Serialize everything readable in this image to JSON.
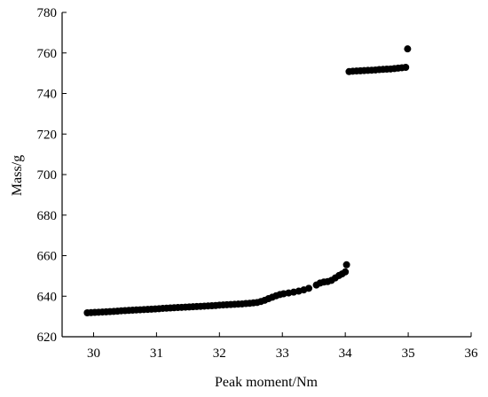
{
  "chart_data": {
    "type": "scatter",
    "xlabel": "Peak moment/Nm",
    "ylabel": "Mass/g",
    "xlim": [
      29.5,
      36
    ],
    "ylim": [
      620,
      780
    ],
    "xticks": [
      30,
      31,
      32,
      33,
      34,
      35,
      36
    ],
    "yticks": [
      620,
      640,
      660,
      680,
      700,
      720,
      740,
      760,
      780
    ],
    "grid": false,
    "legend": "none",
    "point_color": "#000000",
    "series": [
      {
        "points": [
          [
            29.9,
            631.8
          ],
          [
            29.96,
            631.9
          ],
          [
            30.02,
            632.0
          ],
          [
            30.08,
            632.1
          ],
          [
            30.14,
            632.2
          ],
          [
            30.2,
            632.3
          ],
          [
            30.26,
            632.4
          ],
          [
            30.32,
            632.5
          ],
          [
            30.38,
            632.6
          ],
          [
            30.44,
            632.8
          ],
          [
            30.5,
            632.9
          ],
          [
            30.56,
            633.0
          ],
          [
            30.62,
            633.1
          ],
          [
            30.68,
            633.2
          ],
          [
            30.74,
            633.3
          ],
          [
            30.8,
            633.4
          ],
          [
            30.86,
            633.5
          ],
          [
            30.92,
            633.6
          ],
          [
            30.98,
            633.7
          ],
          [
            31.04,
            633.8
          ],
          [
            31.1,
            634.0
          ],
          [
            31.16,
            634.1
          ],
          [
            31.22,
            634.2
          ],
          [
            31.28,
            634.3
          ],
          [
            31.34,
            634.4
          ],
          [
            31.4,
            634.5
          ],
          [
            31.46,
            634.6
          ],
          [
            31.52,
            634.7
          ],
          [
            31.58,
            634.8
          ],
          [
            31.64,
            634.9
          ],
          [
            31.7,
            635.0
          ],
          [
            31.76,
            635.1
          ],
          [
            31.82,
            635.2
          ],
          [
            31.88,
            635.3
          ],
          [
            31.94,
            635.4
          ],
          [
            32.0,
            635.6
          ],
          [
            32.06,
            635.7
          ],
          [
            32.12,
            635.8
          ],
          [
            32.18,
            635.9
          ],
          [
            32.24,
            636.0
          ],
          [
            32.3,
            636.1
          ],
          [
            32.36,
            636.2
          ],
          [
            32.42,
            636.4
          ],
          [
            32.48,
            636.5
          ],
          [
            32.54,
            636.7
          ],
          [
            32.6,
            636.9
          ],
          [
            32.66,
            637.4
          ],
          [
            32.72,
            638.0
          ],
          [
            32.78,
            638.8
          ],
          [
            32.84,
            639.5
          ],
          [
            32.9,
            640.2
          ],
          [
            32.96,
            640.8
          ],
          [
            33.02,
            641.2
          ],
          [
            33.1,
            641.6
          ],
          [
            33.18,
            642.0
          ],
          [
            33.26,
            642.5
          ],
          [
            33.34,
            643.1
          ],
          [
            33.42,
            643.9
          ],
          [
            33.54,
            645.5
          ],
          [
            33.6,
            646.5
          ],
          [
            33.66,
            647.0
          ],
          [
            33.72,
            647.2
          ],
          [
            33.78,
            647.8
          ],
          [
            33.84,
            649.0
          ],
          [
            33.9,
            650.2
          ],
          [
            33.95,
            651.0
          ],
          [
            34.0,
            652.0
          ],
          [
            34.02,
            655.5
          ],
          [
            34.06,
            750.8
          ],
          [
            34.12,
            751.0
          ],
          [
            34.18,
            751.1
          ],
          [
            34.24,
            751.2
          ],
          [
            34.3,
            751.3
          ],
          [
            34.36,
            751.4
          ],
          [
            34.42,
            751.5
          ],
          [
            34.48,
            751.6
          ],
          [
            34.54,
            751.8
          ],
          [
            34.6,
            751.9
          ],
          [
            34.66,
            752.0
          ],
          [
            34.72,
            752.1
          ],
          [
            34.78,
            752.3
          ],
          [
            34.84,
            752.5
          ],
          [
            34.9,
            752.7
          ],
          [
            34.96,
            752.9
          ],
          [
            34.99,
            762.0
          ]
        ]
      }
    ]
  }
}
